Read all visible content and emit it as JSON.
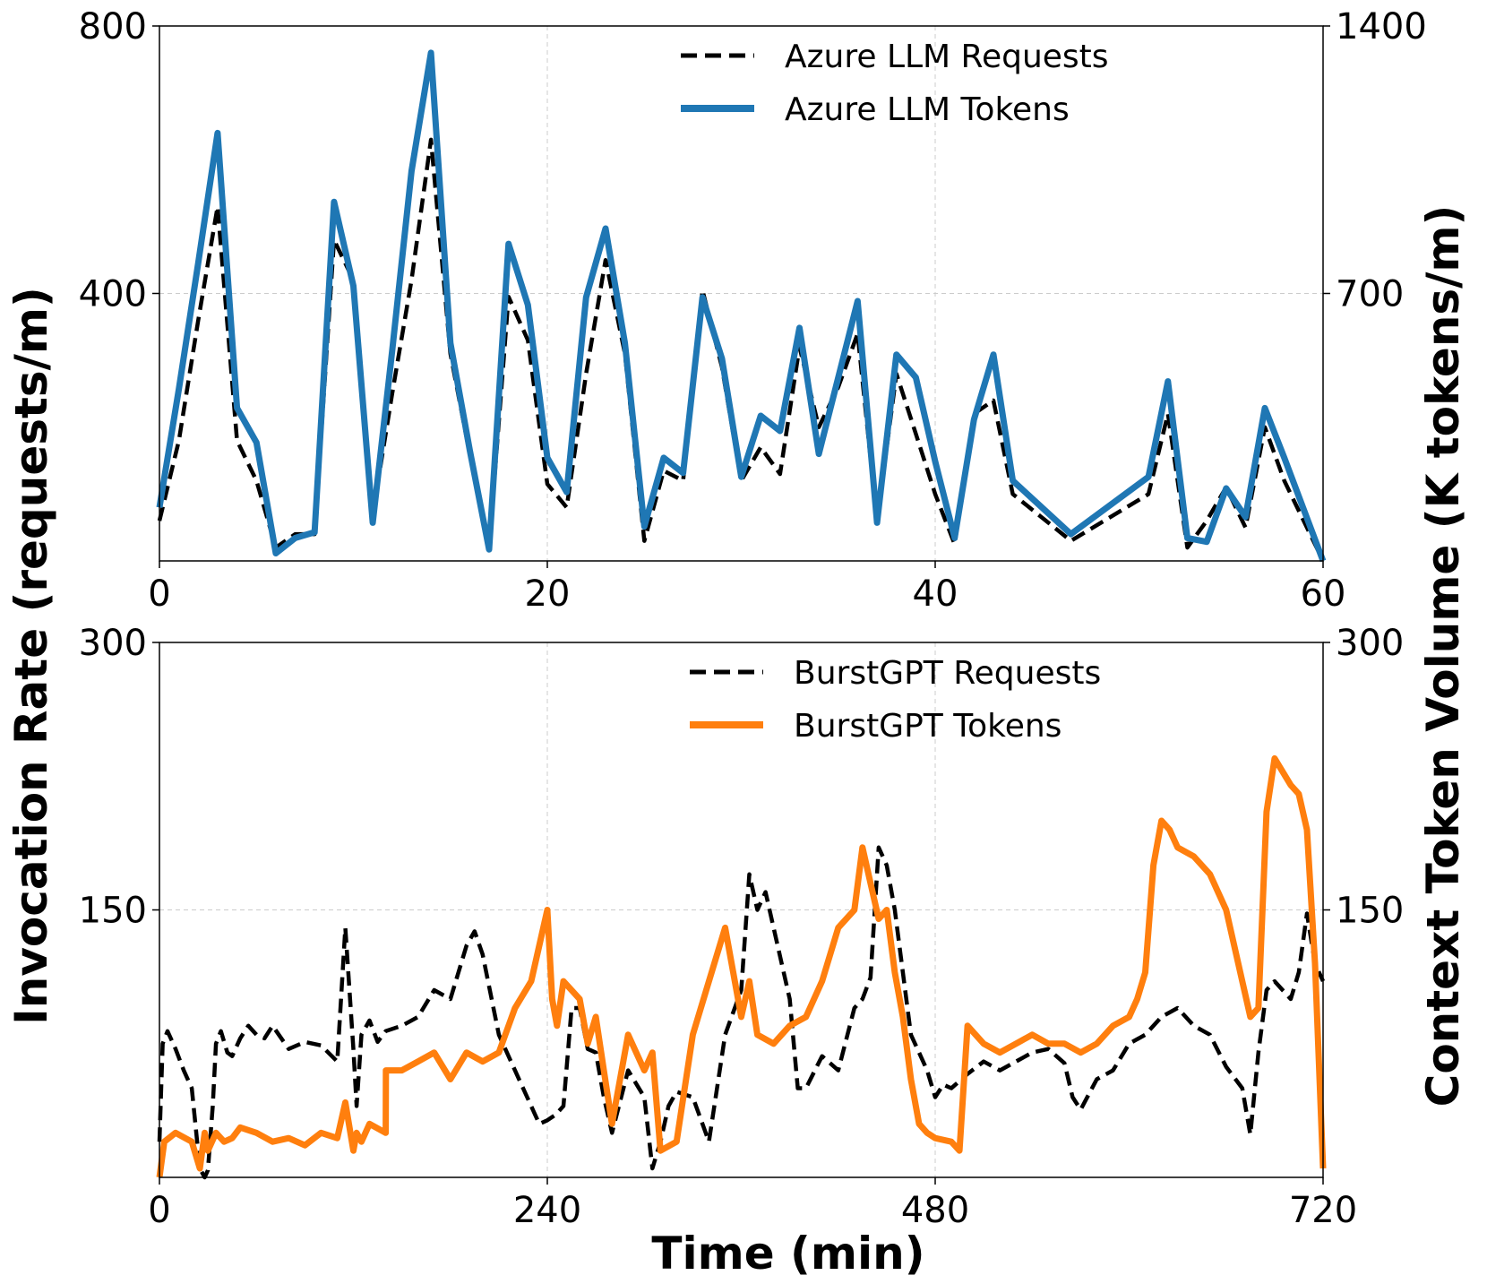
{
  "figure": {
    "ylabel_left": "Invocation Rate (requests/m)",
    "ylabel_right": "Context Token Volume (K tokens/m)",
    "xlabel_bottom": "Time (min)"
  },
  "colors": {
    "requests": "#000000",
    "azure_tokens": "#1f77b4",
    "burst_tokens": "#ff7f0e"
  },
  "chart_data": [
    {
      "type": "line",
      "panel": "top",
      "xlim": [
        0,
        60
      ],
      "ylim_left": [
        0,
        800
      ],
      "ylim_right": [
        0,
        1400
      ],
      "xticks": [
        "0",
        "20",
        "40",
        "60"
      ],
      "yticks_left": [
        "400",
        "800"
      ],
      "yticks_right": [
        "700",
        "1400"
      ],
      "legend": {
        "placement": "top-center",
        "entries": [
          "Azure LLM Requests",
          "Azure LLM Tokens"
        ]
      },
      "series": [
        {
          "name": "Azure LLM Requests",
          "axis": "left",
          "style": "dashed",
          "x": [
            0,
            1,
            2,
            3,
            4,
            5,
            6,
            7,
            8,
            9,
            10,
            11,
            12,
            13,
            14,
            15,
            16,
            17,
            18,
            19,
            20,
            21,
            22,
            23,
            24,
            25,
            26,
            27,
            28,
            29,
            30,
            31,
            32,
            33,
            34,
            35,
            36,
            37,
            38,
            39,
            40,
            41,
            42,
            43,
            44,
            47,
            51,
            52,
            53,
            54,
            55,
            56,
            57,
            58,
            60
          ],
          "values": [
            60,
            180,
            360,
            530,
            180,
            120,
            20,
            40,
            40,
            480,
            420,
            70,
            250,
            420,
            630,
            310,
            160,
            20,
            395,
            330,
            115,
            80,
            280,
            450,
            310,
            30,
            135,
            120,
            405,
            290,
            120,
            170,
            130,
            320,
            200,
            260,
            340,
            60,
            280,
            190,
            100,
            25,
            220,
            240,
            100,
            30,
            100,
            220,
            20,
            60,
            110,
            50,
            200,
            120,
            0
          ]
        },
        {
          "name": "Azure LLM Tokens",
          "axis": "right",
          "style": "solid",
          "x": [
            0,
            1,
            2,
            3,
            4,
            5,
            6,
            7,
            8,
            9,
            10,
            11,
            12,
            13,
            14,
            15,
            16,
            17,
            18,
            19,
            20,
            21,
            22,
            23,
            24,
            25,
            26,
            27,
            28,
            29,
            30,
            31,
            32,
            33,
            34,
            35,
            36,
            37,
            38,
            39,
            40,
            41,
            42,
            43,
            44,
            47,
            51,
            52,
            53,
            54,
            55,
            56,
            57,
            58,
            60
          ],
          "values": [
            140,
            450,
            780,
            1120,
            400,
            310,
            20,
            60,
            75,
            940,
            720,
            100,
            550,
            1020,
            1330,
            570,
            290,
            30,
            830,
            670,
            270,
            180,
            690,
            870,
            570,
            90,
            270,
            230,
            690,
            530,
            220,
            380,
            340,
            610,
            280,
            480,
            680,
            100,
            540,
            480,
            260,
            60,
            370,
            540,
            210,
            70,
            220,
            470,
            60,
            50,
            190,
            115,
            400,
            270,
            0
          ]
        }
      ]
    },
    {
      "type": "line",
      "panel": "bottom",
      "xlim": [
        0,
        720
      ],
      "ylim_left": [
        0,
        300
      ],
      "ylim_right": [
        0,
        300
      ],
      "xticks": [
        "0",
        "240",
        "480",
        "720"
      ],
      "yticks_left": [
        "150",
        "300"
      ],
      "yticks_right": [
        "150",
        "300"
      ],
      "legend": {
        "placement": "top-center",
        "entries": [
          "BurstGPT Requests",
          "BurstGPT Tokens"
        ]
      },
      "series": [
        {
          "name": "BurstGPT Requests",
          "axis": "left",
          "style": "dashed",
          "x": [
            0,
            2,
            5,
            10,
            15,
            20,
            25,
            28,
            30,
            33,
            35,
            38,
            42,
            45,
            50,
            55,
            60,
            65,
            70,
            80,
            90,
            100,
            110,
            115,
            120,
            122,
            125,
            130,
            135,
            140,
            150,
            160,
            170,
            180,
            190,
            195,
            200,
            210,
            220,
            230,
            235,
            240,
            245,
            250,
            255,
            260,
            265,
            270,
            275,
            280,
            290,
            300,
            305,
            310,
            315,
            320,
            330,
            340,
            350,
            360,
            365,
            370,
            375,
            380,
            385,
            390,
            395,
            400,
            410,
            420,
            430,
            435,
            440,
            445,
            450,
            455,
            460,
            465,
            470,
            475,
            480,
            485,
            490,
            500,
            510,
            520,
            530,
            540,
            550,
            560,
            565,
            570,
            580,
            590,
            600,
            610,
            620,
            630,
            640,
            650,
            660,
            670,
            675,
            680,
            685,
            690,
            700,
            705,
            710,
            715,
            720
          ],
          "values": [
            20,
            75,
            82,
            72,
            60,
            50,
            5,
            0,
            4,
            40,
            75,
            82,
            70,
            68,
            78,
            85,
            80,
            78,
            85,
            72,
            76,
            74,
            65,
            140,
            72,
            40,
            80,
            88,
            76,
            82,
            85,
            90,
            105,
            100,
            130,
            138,
            125,
            80,
            60,
            40,
            30,
            32,
            35,
            40,
            95,
            95,
            72,
            70,
            45,
            25,
            60,
            45,
            5,
            20,
            40,
            48,
            45,
            20,
            80,
            105,
            170,
            150,
            160,
            140,
            120,
            100,
            50,
            50,
            68,
            60,
            95,
            100,
            112,
            185,
            175,
            150,
            115,
            80,
            70,
            60,
            45,
            52,
            50,
            58,
            65,
            60,
            65,
            70,
            72,
            64,
            45,
            38,
            55,
            60,
            75,
            80,
            90,
            95,
            85,
            80,
            62,
            50,
            24,
            70,
            105,
            110,
            100,
            115,
            148,
            120,
            110
          ]
        },
        {
          "name": "BurstGPT Tokens",
          "axis": "right",
          "style": "solid",
          "x": [
            0,
            3,
            10,
            20,
            25,
            28,
            30,
            35,
            40,
            45,
            50,
            60,
            70,
            80,
            90,
            100,
            110,
            115,
            120,
            122,
            125,
            130,
            140,
            140.1,
            150,
            160,
            170,
            180,
            190,
            200,
            210,
            220,
            230,
            235,
            240,
            243,
            246,
            250,
            260,
            265,
            270,
            275,
            280,
            290,
            300,
            305,
            310,
            320,
            330,
            340,
            350,
            360,
            365,
            370,
            380,
            390,
            400,
            410,
            420,
            430,
            435,
            440,
            445,
            450,
            455,
            460,
            465,
            470,
            475,
            480,
            490,
            495,
            500,
            510,
            520,
            530,
            540,
            550,
            560,
            570,
            580,
            590,
            600,
            605,
            610,
            615,
            620,
            625,
            630,
            640,
            650,
            660,
            670,
            675,
            680,
            685,
            690,
            700,
            705,
            710,
            715,
            720
          ],
          "values": [
            0,
            20,
            25,
            20,
            5,
            25,
            15,
            25,
            20,
            22,
            28,
            25,
            20,
            22,
            18,
            25,
            22,
            42,
            15,
            25,
            20,
            30,
            25,
            60,
            60,
            65,
            70,
            55,
            70,
            65,
            70,
            95,
            110,
            130,
            150,
            100,
            85,
            110,
            100,
            75,
            90,
            60,
            30,
            80,
            60,
            70,
            15,
            20,
            80,
            110,
            140,
            90,
            110,
            80,
            75,
            85,
            90,
            110,
            140,
            150,
            185,
            165,
            145,
            150,
            115,
            90,
            55,
            30,
            25,
            22,
            20,
            15,
            85,
            75,
            70,
            75,
            80,
            75,
            75,
            70,
            75,
            85,
            90,
            100,
            115,
            175,
            200,
            195,
            185,
            180,
            170,
            150,
            110,
            90,
            95,
            205,
            235,
            220,
            215,
            195,
            120,
            5
          ]
        }
      ]
    }
  ]
}
